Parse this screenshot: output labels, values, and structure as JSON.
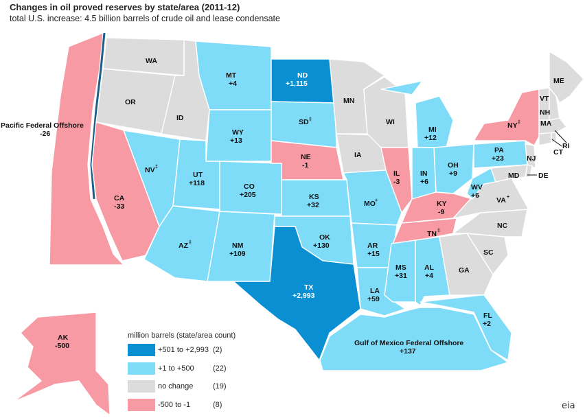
{
  "title": "Changes in oil proved reserves by state/area (2011-12)",
  "subtitle": "total U.S. increase: 4.5 billion barrels of crude oil and lease condensate",
  "colors": {
    "large_increase": "#0a8fd2",
    "increase": "#7fdcf8",
    "no_change": "#dcdcdc",
    "decrease": "#f79aa3",
    "coast_line": "#1c5f8a"
  },
  "legend": {
    "title": "million barrels (state/area count)",
    "items": [
      {
        "label": "+501 to +2,993",
        "count": "(2)"
      },
      {
        "label": "+1 to +500",
        "count": "(22)"
      },
      {
        "label": "no change",
        "count": "(19)"
      },
      {
        "label": "-500 to -1",
        "count": "(8)"
      }
    ]
  },
  "regions": {
    "WA": {
      "name": "WA",
      "change": ""
    },
    "OR": {
      "name": "OR",
      "change": ""
    },
    "ID": {
      "name": "ID",
      "change": ""
    },
    "MT": {
      "name": "MT",
      "change": "+4"
    },
    "ND": {
      "name": "ND",
      "change": "+1,115"
    },
    "SD": {
      "name": "SD",
      "change": "",
      "note": "‡"
    },
    "WY": {
      "name": "WY",
      "change": "+13"
    },
    "NV": {
      "name": "NV",
      "change": "",
      "note": "‡"
    },
    "UT": {
      "name": "UT",
      "change": "+118"
    },
    "CO": {
      "name": "CO",
      "change": "+205"
    },
    "CA": {
      "name": "CA",
      "change": "-33"
    },
    "AZ": {
      "name": "AZ",
      "change": "",
      "note": "‡"
    },
    "NM": {
      "name": "NM",
      "change": "+109"
    },
    "NE": {
      "name": "NE",
      "change": "-1"
    },
    "KS": {
      "name": "KS",
      "change": "+32"
    },
    "OK": {
      "name": "OK",
      "change": "+130"
    },
    "TX": {
      "name": "TX",
      "change": "+2,993"
    },
    "MN": {
      "name": "MN",
      "change": ""
    },
    "IA": {
      "name": "IA",
      "change": ""
    },
    "MO": {
      "name": "MO",
      "change": "",
      "note": "+"
    },
    "AR": {
      "name": "AR",
      "change": "+15"
    },
    "LA": {
      "name": "LA",
      "change": "+59"
    },
    "WI": {
      "name": "WI",
      "change": ""
    },
    "IL": {
      "name": "IL",
      "change": "-3"
    },
    "MI": {
      "name": "MI",
      "change": "+12"
    },
    "IN": {
      "name": "IN",
      "change": "+6"
    },
    "OH": {
      "name": "OH",
      "change": "+9"
    },
    "KY": {
      "name": "KY",
      "change": "-9"
    },
    "TN": {
      "name": "TN",
      "change": "",
      "note": "‡"
    },
    "MS": {
      "name": "MS",
      "change": "+31"
    },
    "AL": {
      "name": "AL",
      "change": "+4"
    },
    "GA": {
      "name": "GA",
      "change": ""
    },
    "FL": {
      "name": "FL",
      "change": "+2"
    },
    "SC": {
      "name": "SC",
      "change": ""
    },
    "NC": {
      "name": "NC",
      "change": ""
    },
    "VA": {
      "name": "VA",
      "change": "",
      "note": "+"
    },
    "WV": {
      "name": "WV",
      "change": "+6"
    },
    "PA": {
      "name": "PA",
      "change": "+23"
    },
    "NY": {
      "name": "NY",
      "change": "",
      "note": "‡"
    },
    "MD": {
      "name": "MD",
      "change": ""
    },
    "DE": {
      "name": "DE",
      "change": ""
    },
    "NJ": {
      "name": "NJ",
      "change": ""
    },
    "CT": {
      "name": "CT",
      "change": ""
    },
    "RI": {
      "name": "RI",
      "change": ""
    },
    "MA": {
      "name": "MA",
      "change": ""
    },
    "VT": {
      "name": "VT",
      "change": ""
    },
    "NH": {
      "name": "NH",
      "change": ""
    },
    "ME": {
      "name": "ME",
      "change": ""
    },
    "AK": {
      "name": "AK",
      "change": "-500"
    },
    "PAC": {
      "name": "Pacific Federal Offshore",
      "change": "-26"
    },
    "GOM": {
      "name": "Gulf of Mexico Federal Offshore",
      "change": "+137"
    }
  },
  "logo": "eia"
}
